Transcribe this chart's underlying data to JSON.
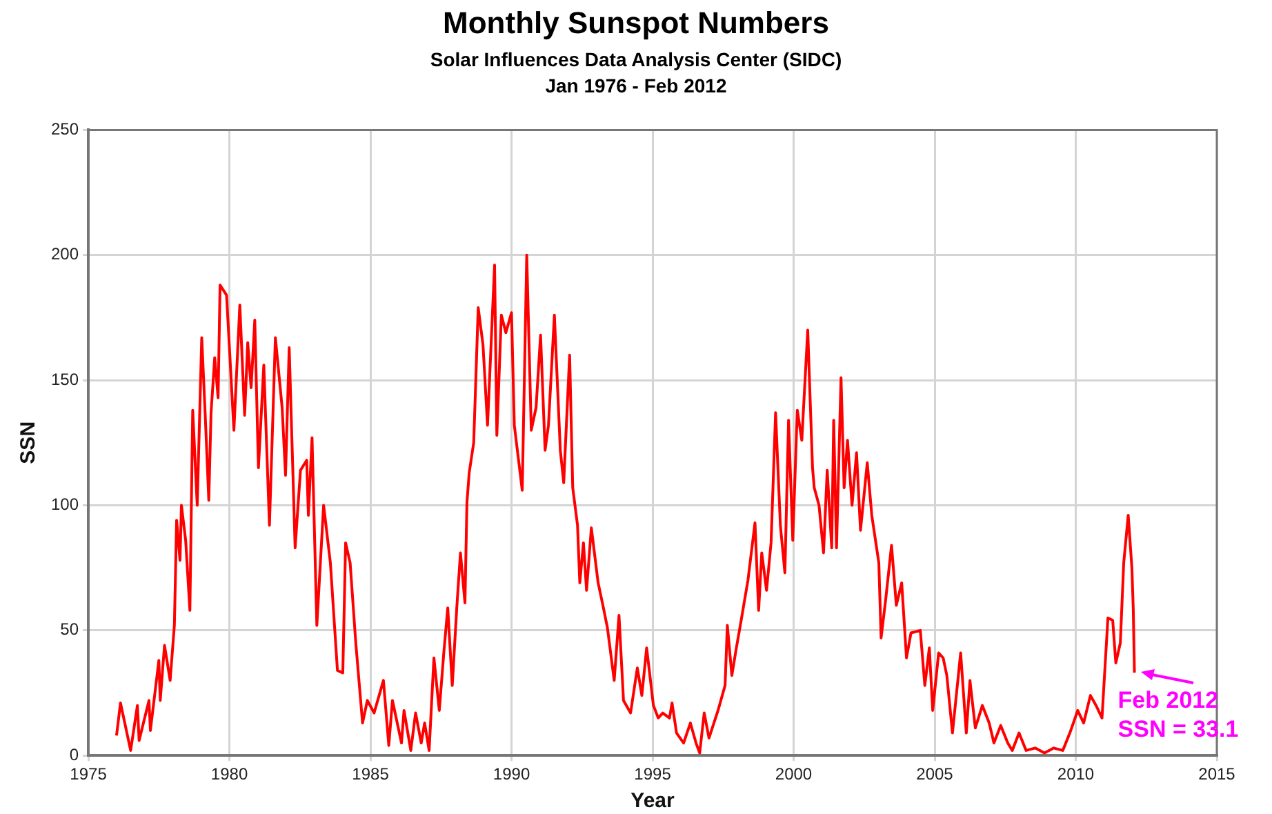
{
  "chart_data": {
    "type": "line",
    "title": "Monthly Sunspot Numbers",
    "subtitle": "Solar Influences Data Analysis Center (SIDC)\nJan 1976 - Feb 2012",
    "xlabel": "Year",
    "ylabel": "SSN",
    "xlim": [
      1975,
      2015
    ],
    "xticks": [
      1975,
      1980,
      1985,
      1990,
      1995,
      2000,
      2005,
      2010,
      2015
    ],
    "ylim": [
      0,
      250
    ],
    "yticks": [
      0,
      50,
      100,
      150,
      200,
      250
    ],
    "grid": true,
    "legend": false,
    "marker": "none",
    "line_style": "solid",
    "annotations": [
      {
        "text": "Feb 2012\nSSN = 33.1",
        "x": 2012.08,
        "y": 33.1
      }
    ],
    "series": [
      {
        "color": "#ff0000",
        "x": [
          1976.0,
          1976.14,
          1976.5,
          1976.74,
          1976.8,
          1977.15,
          1977.2,
          1977.5,
          1977.55,
          1977.7,
          1977.9,
          1978.05,
          1978.13,
          1978.25,
          1978.3,
          1978.45,
          1978.6,
          1978.7,
          1978.86,
          1979.02,
          1979.14,
          1979.27,
          1979.35,
          1979.48,
          1979.6,
          1979.67,
          1979.9,
          1980.16,
          1980.37,
          1980.54,
          1980.65,
          1980.77,
          1980.9,
          1981.03,
          1981.22,
          1981.42,
          1981.63,
          1981.87,
          1981.99,
          1982.12,
          1982.33,
          1982.52,
          1982.74,
          1982.8,
          1982.93,
          1983.1,
          1983.34,
          1983.58,
          1983.83,
          1984.02,
          1984.12,
          1984.28,
          1984.48,
          1984.72,
          1984.89,
          1985.13,
          1985.46,
          1985.65,
          1985.78,
          1986.1,
          1986.19,
          1986.43,
          1986.6,
          1986.8,
          1986.92,
          1987.08,
          1987.25,
          1987.44,
          1987.6,
          1987.74,
          1987.9,
          1988.06,
          1988.19,
          1988.35,
          1988.42,
          1988.5,
          1988.66,
          1988.82,
          1988.99,
          1989.15,
          1989.4,
          1989.48,
          1989.64,
          1989.8,
          1990.0,
          1990.1,
          1990.38,
          1990.54,
          1990.7,
          1990.87,
          1991.03,
          1991.19,
          1991.31,
          1991.52,
          1991.73,
          1991.85,
          1992.06,
          1992.17,
          1992.34,
          1992.42,
          1992.55,
          1992.66,
          1992.83,
          1993.07,
          1993.24,
          1993.4,
          1993.64,
          1993.81,
          1993.97,
          1994.22,
          1994.46,
          1994.62,
          1994.79,
          1995.03,
          1995.2,
          1995.36,
          1995.6,
          1995.69,
          1995.85,
          1996.1,
          1996.34,
          1996.54,
          1996.67,
          1996.83,
          1997.0,
          1997.32,
          1997.57,
          1997.65,
          1997.81,
          1997.97,
          1998.14,
          1998.38,
          1998.63,
          1998.76,
          1998.87,
          1999.04,
          1999.2,
          1999.36,
          1999.53,
          1999.69,
          1999.82,
          1999.97,
          2000.13,
          2000.29,
          2000.5,
          2000.67,
          2000.73,
          2000.9,
          2001.06,
          2001.19,
          2001.35,
          2001.42,
          2001.52,
          2001.68,
          2001.79,
          2001.91,
          2002.07,
          2002.23,
          2002.37,
          2002.61,
          2002.77,
          2003.02,
          2003.1,
          2003.26,
          2003.47,
          2003.64,
          2003.83,
          2004.0,
          2004.16,
          2004.49,
          2004.65,
          2004.81,
          2004.93,
          2005.14,
          2005.3,
          2005.43,
          2005.63,
          2005.92,
          2006.12,
          2006.25,
          2006.44,
          2006.69,
          2006.93,
          2007.1,
          2007.34,
          2007.59,
          2007.75,
          2007.99,
          2008.24,
          2008.56,
          2008.89,
          2009.22,
          2009.54,
          2009.79,
          2010.07,
          2010.28,
          2010.52,
          2010.72,
          2010.93,
          2011.14,
          2011.31,
          2011.42,
          2011.58,
          2011.7,
          2011.86,
          2011.99,
          2012.04,
          2012.08
        ],
        "values": [
          8,
          21,
          2,
          20,
          6,
          22,
          10,
          38,
          22,
          44,
          30,
          52,
          94,
          78,
          100,
          86,
          58,
          138,
          100,
          167,
          137,
          102,
          137,
          159,
          143,
          188,
          184,
          130,
          180,
          136,
          165,
          147,
          174,
          115,
          156,
          92,
          167,
          139,
          112,
          163,
          83,
          114,
          118,
          96,
          127,
          52,
          100,
          77,
          34,
          33,
          85,
          77,
          45,
          13,
          22,
          17,
          30,
          4,
          22,
          5,
          18,
          2,
          17,
          5,
          13,
          2,
          39,
          18,
          41,
          59,
          28,
          59,
          81,
          61,
          101,
          113,
          125,
          179,
          164,
          132,
          196,
          128,
          176,
          169,
          177,
          132,
          106,
          200,
          130,
          139,
          168,
          122,
          132,
          176,
          122,
          109,
          160,
          107,
          92,
          69,
          85,
          66,
          91,
          69,
          60,
          51,
          30,
          56,
          22,
          17,
          35,
          24,
          43,
          20,
          15,
          17,
          15,
          21,
          9,
          5,
          13,
          5,
          1,
          17,
          7,
          18,
          28,
          52,
          32,
          43,
          54,
          70,
          93,
          58,
          81,
          66,
          85,
          137,
          92,
          73,
          134,
          86,
          138,
          126,
          170,
          115,
          107,
          100,
          81,
          114,
          83,
          134,
          83,
          151,
          107,
          126,
          100,
          121,
          90,
          117,
          96,
          77,
          47,
          62,
          84,
          60,
          69,
          39,
          49,
          50,
          28,
          43,
          18,
          41,
          39,
          32,
          9,
          41,
          9,
          30,
          11,
          20,
          13,
          5,
          12,
          5,
          2,
          9,
          2,
          3,
          1,
          3,
          2,
          9,
          18,
          13,
          24,
          20,
          15,
          55,
          54,
          37,
          45,
          77,
          96,
          75,
          58,
          33.1
        ]
      }
    ]
  }
}
